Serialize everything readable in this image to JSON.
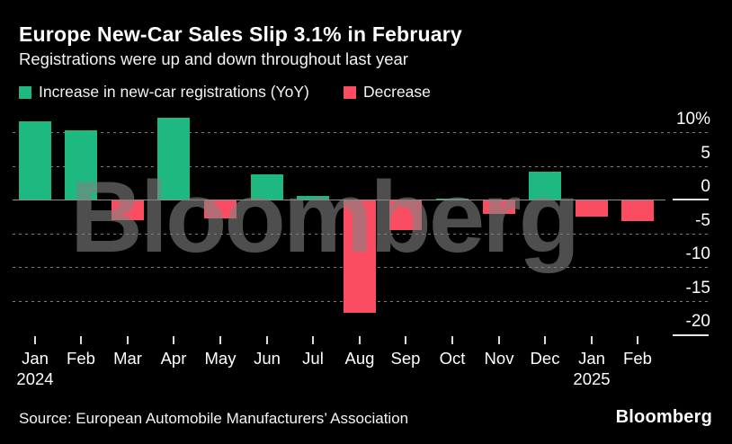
{
  "header": {
    "title": "Europe New-Car Sales Slip 3.1% in February",
    "subtitle": "Registrations were up and down throughout last year"
  },
  "legend": {
    "increase": {
      "label": "Increase in new-car registrations (YoY)",
      "color": "#1eb980"
    },
    "decrease": {
      "label": "Decrease",
      "color": "#fb4d61"
    }
  },
  "chart_data": {
    "type": "bar",
    "title": "Europe New-Car Sales Slip 3.1% in February",
    "subtitle": "Registrations were up and down throughout last year",
    "unit": "percent YoY change in new-car registrations",
    "categories": [
      {
        "month": "Jan",
        "year": "2024"
      },
      {
        "month": "Feb"
      },
      {
        "month": "Mar"
      },
      {
        "month": "Apr"
      },
      {
        "month": "May"
      },
      {
        "month": "Jun"
      },
      {
        "month": "Jul"
      },
      {
        "month": "Aug"
      },
      {
        "month": "Sep"
      },
      {
        "month": "Oct"
      },
      {
        "month": "Nov"
      },
      {
        "month": "Dec"
      },
      {
        "month": "Jan",
        "year": "2025"
      },
      {
        "month": "Feb"
      }
    ],
    "values": [
      11.6,
      10.3,
      -2.9,
      12.1,
      -2.7,
      3.7,
      0.5,
      -16.7,
      -4.4,
      0.1,
      -2.0,
      4.1,
      -2.4,
      -3.1
    ],
    "ylim": [
      -20.6,
      13
    ],
    "grid": "dotted horizontal",
    "legend_position": "top-left",
    "yticks": [
      {
        "value": 10,
        "label": "10%",
        "line": "dotted"
      },
      {
        "value": 5,
        "label": "5",
        "line": "dotted"
      },
      {
        "value": 0,
        "label": "0",
        "line": "solid"
      },
      {
        "value": -5,
        "label": "-5",
        "line": "dotted"
      },
      {
        "value": -10,
        "label": "-10",
        "line": "dotted"
      },
      {
        "value": -15,
        "label": "-15",
        "line": "dotted"
      },
      {
        "value": -20,
        "label": "-20",
        "line": "baseline"
      }
    ],
    "colors": {
      "positive": "#1eb980",
      "negative": "#fb4d61"
    }
  },
  "watermark": "Bloomberg",
  "footer": {
    "source": "Source: European Automobile Manufacturers’ Association",
    "logo": "Bloomberg"
  }
}
